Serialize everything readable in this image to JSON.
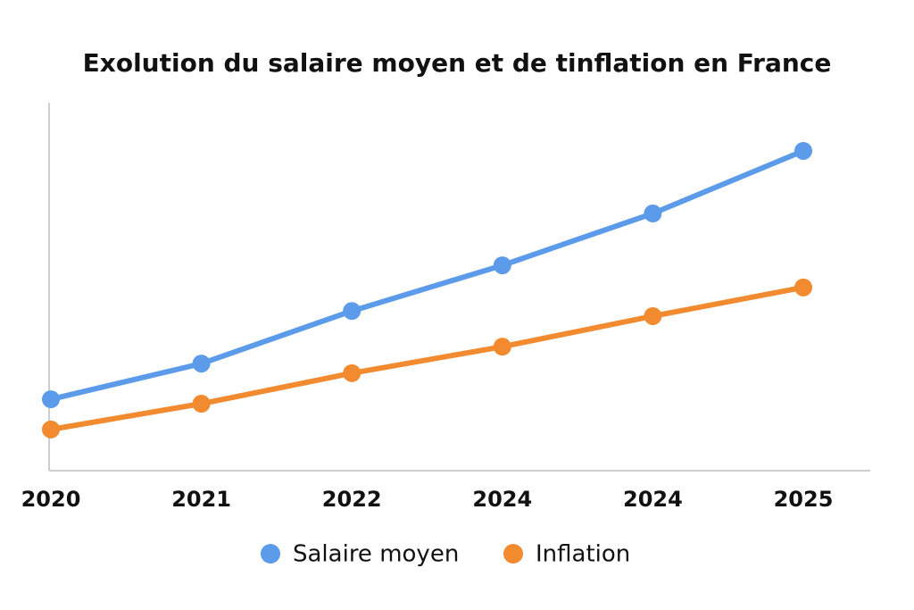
{
  "chart_data": {
    "type": "line",
    "title": "Exolution du salaire moyen et de tinflation en France",
    "categories": [
      "2020",
      "2021",
      "2022",
      "2024",
      "2024",
      "2025"
    ],
    "series": [
      {
        "name": "Salaire moyen",
        "color": "#5b9bea",
        "values": [
          19.4,
          29.1,
          43.4,
          55.8,
          69.9,
          86.9
        ]
      },
      {
        "name": "Inflation",
        "color": "#f28a30",
        "values": [
          11.2,
          18.2,
          26.5,
          33.7,
          42.0,
          49.8
        ]
      }
    ],
    "ylim": [
      0,
      100
    ]
  }
}
